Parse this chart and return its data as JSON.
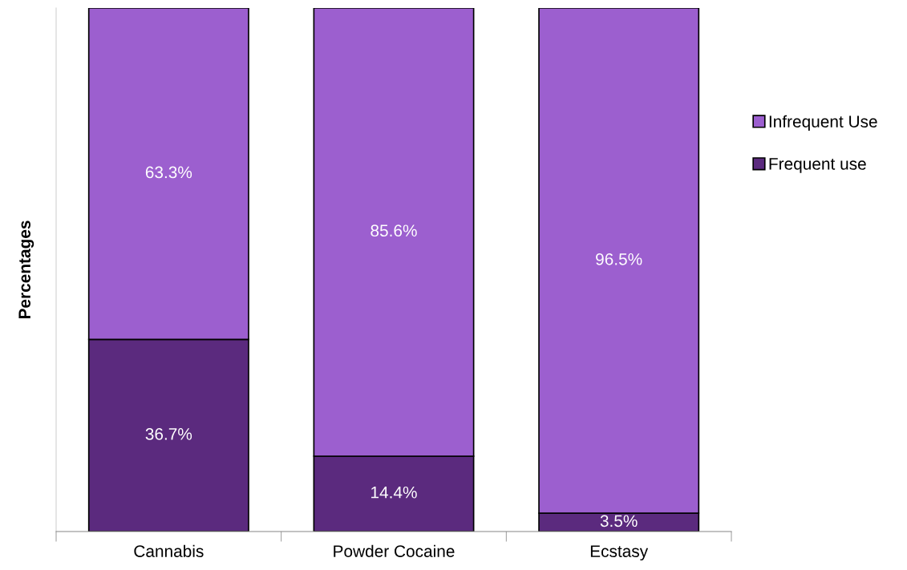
{
  "chart_data": {
    "type": "bar",
    "stacked": true,
    "ylabel": "Percentages",
    "categories": [
      "Cannabis",
      "Powder Cocaine",
      "Ecstasy"
    ],
    "series": [
      {
        "name": "Frequent use",
        "color": "#5b2a7e",
        "values": [
          36.7,
          14.4,
          3.5
        ],
        "value_labels": [
          "36.7%",
          "14.4%",
          "3.5%"
        ]
      },
      {
        "name": "Infrequent Use",
        "color": "#9c5fcf",
        "values": [
          63.3,
          85.6,
          96.5
        ],
        "value_labels": [
          "63.3%",
          "85.6%",
          "96.5%"
        ]
      }
    ],
    "ylim": [
      0,
      100
    ],
    "legend": "right",
    "grid": false
  }
}
